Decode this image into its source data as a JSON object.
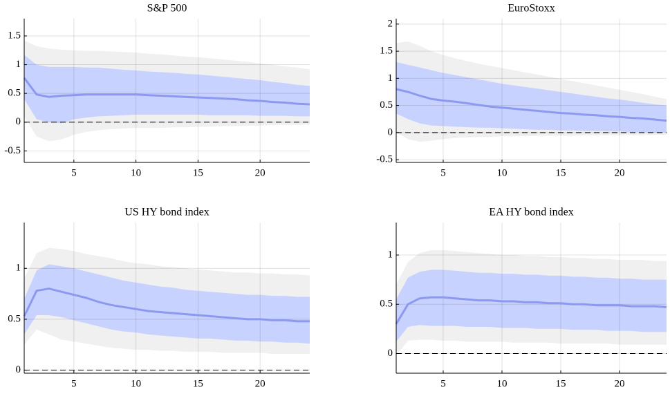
{
  "chart_data": [
    {
      "type": "line",
      "title": "S&P 500",
      "x": [
        1,
        2,
        3,
        4,
        5,
        6,
        7,
        8,
        9,
        10,
        11,
        12,
        13,
        14,
        15,
        16,
        17,
        18,
        19,
        20,
        21,
        22,
        23,
        24
      ],
      "xlim": [
        1,
        24
      ],
      "xticks": [
        5,
        10,
        15,
        20
      ],
      "ylim": [
        -0.7,
        1.8
      ],
      "yticks": [
        -0.5,
        0,
        0.5,
        1,
        1.5
      ],
      "grid": true,
      "reference_line": 0,
      "bands": [
        {
          "color": "#f0f0f0",
          "upper": [
            1.42,
            1.32,
            1.28,
            1.26,
            1.25,
            1.24,
            1.24,
            1.23,
            1.22,
            1.21,
            1.19,
            1.18,
            1.16,
            1.14,
            1.13,
            1.11,
            1.09,
            1.07,
            1.05,
            1.02,
            1.0,
            0.97,
            0.95,
            0.92
          ],
          "lower": [
            0.1,
            -0.25,
            -0.33,
            -0.3,
            -0.22,
            -0.17,
            -0.14,
            -0.12,
            -0.11,
            -0.1,
            -0.1,
            -0.1,
            -0.09,
            -0.09,
            -0.08,
            -0.08,
            -0.07,
            -0.07,
            -0.06,
            -0.06,
            -0.05,
            -0.05,
            -0.05,
            -0.04
          ]
        },
        {
          "color": "#c8d2fe",
          "upper": [
            1.17,
            1.0,
            0.96,
            0.96,
            0.96,
            0.95,
            0.95,
            0.93,
            0.91,
            0.9,
            0.88,
            0.87,
            0.86,
            0.84,
            0.83,
            0.81,
            0.79,
            0.77,
            0.75,
            0.73,
            0.7,
            0.68,
            0.65,
            0.63
          ],
          "lower": [
            0.4,
            0.05,
            0.0,
            -0.02,
            0.05,
            0.08,
            0.1,
            0.11,
            0.12,
            0.13,
            0.13,
            0.13,
            0.13,
            0.13,
            0.13,
            0.12,
            0.12,
            0.12,
            0.12,
            0.11,
            0.11,
            0.11,
            0.1,
            0.1
          ]
        }
      ],
      "series": [
        {
          "color": "#8d99f0",
          "values": [
            0.77,
            0.48,
            0.44,
            0.46,
            0.47,
            0.48,
            0.48,
            0.48,
            0.48,
            0.48,
            0.47,
            0.46,
            0.45,
            0.44,
            0.43,
            0.42,
            0.41,
            0.4,
            0.38,
            0.37,
            0.35,
            0.34,
            0.32,
            0.31
          ]
        }
      ]
    },
    {
      "type": "line",
      "title": "EuroStoxx",
      "x": [
        1,
        2,
        3,
        4,
        5,
        6,
        7,
        8,
        9,
        10,
        11,
        12,
        13,
        14,
        15,
        16,
        17,
        18,
        19,
        20,
        21,
        22,
        23,
        24
      ],
      "xlim": [
        1,
        24
      ],
      "xticks": [
        5,
        10,
        15,
        20
      ],
      "ylim": [
        -0.55,
        2.1
      ],
      "yticks": [
        -0.5,
        0,
        0.5,
        1,
        1.5,
        2
      ],
      "grid": true,
      "reference_line": 0,
      "bands": [
        {
          "color": "#f0f0f0",
          "upper": [
            1.65,
            1.68,
            1.6,
            1.5,
            1.43,
            1.37,
            1.32,
            1.27,
            1.23,
            1.19,
            1.15,
            1.11,
            1.07,
            1.03,
            0.99,
            0.95,
            0.91,
            0.87,
            0.83,
            0.79,
            0.75,
            0.71,
            0.66,
            0.62
          ],
          "lower": [
            0.0,
            -0.12,
            -0.17,
            -0.15,
            -0.12,
            -0.1,
            -0.09,
            -0.08,
            -0.08,
            -0.07,
            -0.07,
            -0.07,
            -0.06,
            -0.06,
            -0.06,
            -0.06,
            -0.05,
            -0.05,
            -0.05,
            -0.05,
            -0.05,
            -0.05,
            -0.04,
            -0.04
          ]
        },
        {
          "color": "#c8d2fe",
          "upper": [
            1.3,
            1.25,
            1.2,
            1.15,
            1.1,
            1.06,
            1.02,
            0.98,
            0.94,
            0.9,
            0.87,
            0.84,
            0.81,
            0.78,
            0.75,
            0.72,
            0.69,
            0.66,
            0.63,
            0.61,
            0.58,
            0.55,
            0.52,
            0.5
          ],
          "lower": [
            0.35,
            0.25,
            0.17,
            0.13,
            0.12,
            0.11,
            0.1,
            0.09,
            0.09,
            0.08,
            0.07,
            0.06,
            0.05,
            0.05,
            0.04,
            0.04,
            0.03,
            0.03,
            0.02,
            0.02,
            0.01,
            0.01,
            0.0,
            0.0
          ]
        }
      ],
      "series": [
        {
          "color": "#8d99f0",
          "values": [
            0.8,
            0.75,
            0.68,
            0.62,
            0.59,
            0.57,
            0.54,
            0.51,
            0.48,
            0.46,
            0.44,
            0.42,
            0.4,
            0.38,
            0.36,
            0.35,
            0.33,
            0.32,
            0.3,
            0.29,
            0.27,
            0.26,
            0.24,
            0.22
          ]
        }
      ]
    },
    {
      "type": "line",
      "title": "US HY bond index",
      "x": [
        1,
        2,
        3,
        4,
        5,
        6,
        7,
        8,
        9,
        10,
        11,
        12,
        13,
        14,
        15,
        16,
        17,
        18,
        19,
        20,
        21,
        22,
        23,
        24
      ],
      "xlim": [
        1,
        24
      ],
      "xticks": [
        5,
        10,
        15,
        20
      ],
      "ylim": [
        -0.03,
        1.45
      ],
      "yticks": [
        0,
        0.5,
        1
      ],
      "grid": true,
      "reference_line": 0,
      "bands": [
        {
          "color": "#f0f0f0",
          "upper": [
            0.9,
            1.15,
            1.2,
            1.19,
            1.17,
            1.14,
            1.12,
            1.1,
            1.07,
            1.05,
            1.04,
            1.02,
            1.01,
            1.0,
            0.99,
            0.98,
            0.97,
            0.96,
            0.96,
            0.95,
            0.95,
            0.94,
            0.94,
            0.93
          ],
          "lower": [
            0.25,
            0.4,
            0.35,
            0.3,
            0.28,
            0.26,
            0.24,
            0.22,
            0.21,
            0.2,
            0.2,
            0.19,
            0.19,
            0.18,
            0.18,
            0.18,
            0.17,
            0.17,
            0.17,
            0.17,
            0.16,
            0.16,
            0.16,
            0.16
          ]
        },
        {
          "color": "#c8d2fe",
          "upper": [
            0.7,
            0.98,
            1.04,
            1.02,
            1.0,
            0.97,
            0.94,
            0.91,
            0.88,
            0.86,
            0.84,
            0.82,
            0.81,
            0.79,
            0.78,
            0.77,
            0.76,
            0.75,
            0.74,
            0.74,
            0.73,
            0.73,
            0.72,
            0.72
          ],
          "lower": [
            0.35,
            0.54,
            0.54,
            0.52,
            0.49,
            0.46,
            0.43,
            0.4,
            0.38,
            0.37,
            0.35,
            0.34,
            0.33,
            0.32,
            0.31,
            0.31,
            0.3,
            0.29,
            0.29,
            0.28,
            0.28,
            0.27,
            0.27,
            0.26
          ]
        }
      ],
      "series": [
        {
          "color": "#8d99f0",
          "values": [
            0.53,
            0.78,
            0.8,
            0.77,
            0.74,
            0.71,
            0.67,
            0.64,
            0.62,
            0.6,
            0.58,
            0.57,
            0.56,
            0.55,
            0.54,
            0.53,
            0.52,
            0.51,
            0.5,
            0.5,
            0.49,
            0.49,
            0.48,
            0.48
          ]
        }
      ]
    },
    {
      "type": "line",
      "title": "EA HY bond index",
      "x": [
        1,
        2,
        3,
        4,
        5,
        6,
        7,
        8,
        9,
        10,
        11,
        12,
        13,
        14,
        15,
        16,
        17,
        18,
        19,
        20,
        21,
        22,
        23,
        24
      ],
      "xlim": [
        1,
        24
      ],
      "xticks": [
        5,
        10,
        15,
        20
      ],
      "ylim": [
        -0.2,
        1.33
      ],
      "yticks": [
        0,
        0.5,
        1
      ],
      "grid": true,
      "reference_line": 0,
      "bands": [
        {
          "color": "#f0f0f0",
          "upper": [
            0.7,
            0.93,
            1.02,
            1.05,
            1.05,
            1.04,
            1.03,
            1.02,
            1.01,
            1.0,
            1.0,
            0.99,
            0.99,
            0.98,
            0.98,
            0.97,
            0.97,
            0.96,
            0.96,
            0.95,
            0.95,
            0.95,
            0.94,
            0.94
          ],
          "lower": [
            -0.02,
            0.13,
            0.14,
            0.14,
            0.13,
            0.13,
            0.12,
            0.12,
            0.12,
            0.12,
            0.11,
            0.11,
            0.11,
            0.11,
            0.1,
            0.1,
            0.1,
            0.1,
            0.1,
            0.09,
            0.09,
            0.09,
            0.09,
            0.09
          ]
        },
        {
          "color": "#c8d2fe",
          "upper": [
            0.55,
            0.77,
            0.83,
            0.85,
            0.85,
            0.84,
            0.83,
            0.82,
            0.82,
            0.81,
            0.81,
            0.8,
            0.8,
            0.79,
            0.79,
            0.78,
            0.78,
            0.77,
            0.77,
            0.76,
            0.76,
            0.75,
            0.75,
            0.75
          ],
          "lower": [
            0.12,
            0.27,
            0.29,
            0.28,
            0.28,
            0.28,
            0.27,
            0.27,
            0.27,
            0.26,
            0.26,
            0.26,
            0.25,
            0.25,
            0.25,
            0.24,
            0.24,
            0.24,
            0.23,
            0.23,
            0.23,
            0.22,
            0.22,
            0.22
          ]
        }
      ],
      "series": [
        {
          "color": "#8d99f0",
          "values": [
            0.3,
            0.5,
            0.56,
            0.57,
            0.57,
            0.56,
            0.55,
            0.54,
            0.54,
            0.53,
            0.53,
            0.52,
            0.52,
            0.51,
            0.51,
            0.5,
            0.5,
            0.49,
            0.49,
            0.49,
            0.48,
            0.48,
            0.48,
            0.47
          ]
        }
      ]
    }
  ]
}
